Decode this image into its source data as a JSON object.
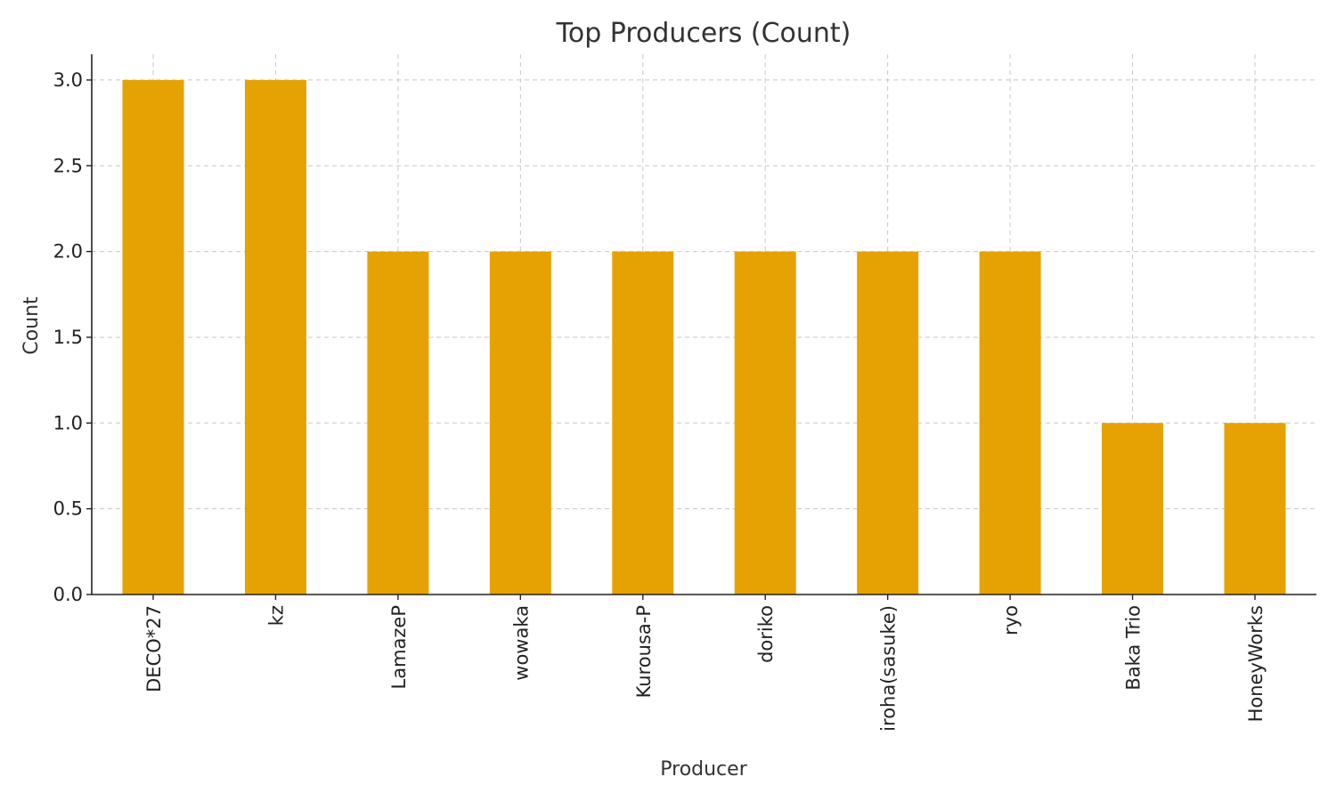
{
  "chart_data": {
    "type": "bar",
    "title": "Top Producers (Count)",
    "xlabel": "Producer",
    "ylabel": "Count",
    "categories": [
      "DECO*27",
      "kz",
      "LamazeP",
      "wowaka",
      "Kurousa-P",
      "doriko",
      "iroha(sasuke)",
      "ryo",
      "Baka Trio",
      "HoneyWorks"
    ],
    "values": [
      3,
      3,
      2,
      2,
      2,
      2,
      2,
      2,
      1,
      1
    ],
    "ylim": [
      0,
      3.15
    ],
    "yticks": [
      "0.0",
      "0.5",
      "1.0",
      "1.5",
      "2.0",
      "2.5",
      "3.0"
    ],
    "grid": true,
    "bar_color": "#e5a202"
  }
}
